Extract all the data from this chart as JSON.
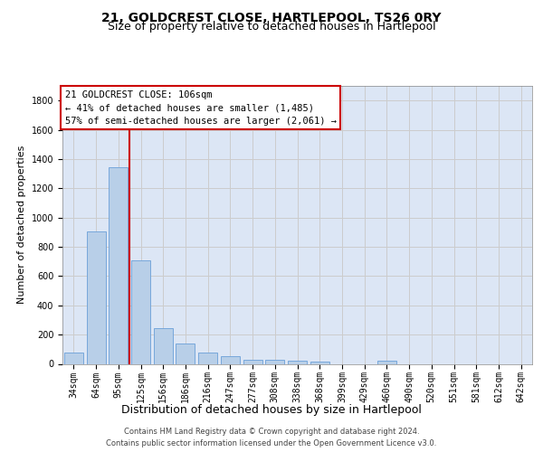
{
  "title": "21, GOLDCREST CLOSE, HARTLEPOOL, TS26 0RY",
  "subtitle": "Size of property relative to detached houses in Hartlepool",
  "xlabel": "Distribution of detached houses by size in Hartlepool",
  "ylabel": "Number of detached properties",
  "categories": [
    "34sqm",
    "64sqm",
    "95sqm",
    "125sqm",
    "156sqm",
    "186sqm",
    "216sqm",
    "247sqm",
    "277sqm",
    "308sqm",
    "338sqm",
    "368sqm",
    "399sqm",
    "429sqm",
    "460sqm",
    "490sqm",
    "520sqm",
    "551sqm",
    "581sqm",
    "612sqm",
    "642sqm"
  ],
  "values": [
    80,
    905,
    1345,
    705,
    245,
    140,
    80,
    55,
    30,
    25,
    20,
    15,
    0,
    0,
    20,
    0,
    0,
    0,
    0,
    0,
    0
  ],
  "bar_color": "#b8cfe8",
  "bar_edge_color": "#6a9fd8",
  "vline_index": 2,
  "vline_color": "#cc0000",
  "annotation_title": "21 GOLDCREST CLOSE: 106sqm",
  "annotation_line1": "← 41% of detached houses are smaller (1,485)",
  "annotation_line2": "57% of semi-detached houses are larger (2,061) →",
  "annotation_box_facecolor": "#ffffff",
  "annotation_box_edgecolor": "#cc0000",
  "ylim": [
    0,
    1900
  ],
  "yticks": [
    0,
    200,
    400,
    600,
    800,
    1000,
    1200,
    1400,
    1600,
    1800
  ],
  "grid_color": "#cccccc",
  "background_color": "#dce6f5",
  "footer_text": "Contains HM Land Registry data © Crown copyright and database right 2024.\nContains public sector information licensed under the Open Government Licence v3.0.",
  "title_fontsize": 10,
  "subtitle_fontsize": 9,
  "ylabel_fontsize": 8,
  "xlabel_fontsize": 9,
  "tick_fontsize": 7,
  "footer_fontsize": 6,
  "annotation_fontsize": 7.5
}
